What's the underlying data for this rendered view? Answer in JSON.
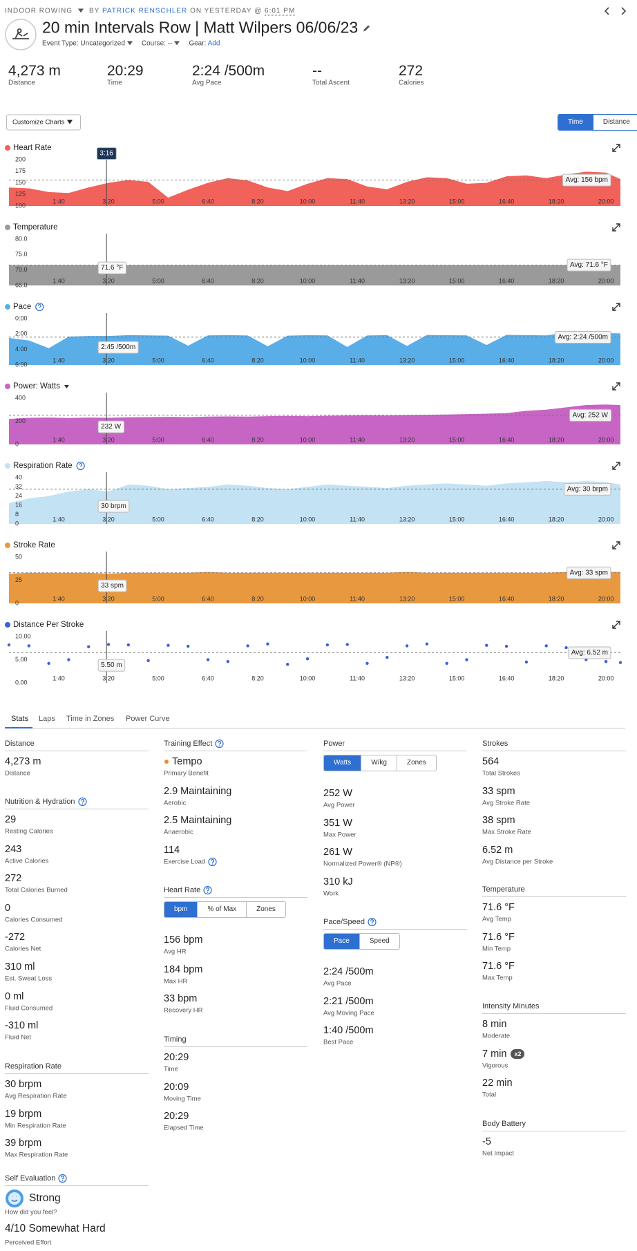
{
  "header": {
    "activity_type": "INDOOR ROWING",
    "by": "BY",
    "author": "PATRICK RENSCHLER",
    "on": "ON YESTERDAY @",
    "time": "6:01 PM",
    "title": "20 min Intervals Row | Matt Wilpers 06/06/23",
    "event_type": "Event Type: Uncategorized",
    "course": "Course: --",
    "gear": "Gear:",
    "gear_add": "Add"
  },
  "summary": [
    {
      "value": "4,273 m",
      "label": "Distance"
    },
    {
      "value": "20:29",
      "label": "Time"
    },
    {
      "value": "2:24 /500m",
      "label": "Avg Pace"
    },
    {
      "value": "--",
      "label": "Total Ascent"
    },
    {
      "value": "272",
      "label": "Calories"
    }
  ],
  "controls": {
    "customize": "Customize Charts",
    "toggle": [
      "Time",
      "Distance"
    ]
  },
  "charts": {
    "xlim": [
      0,
      1229
    ],
    "xticks": [
      {
        "value": 100,
        "label": "1:40"
      },
      {
        "value": 200,
        "label": "3:20"
      },
      {
        "value": 300,
        "label": "5:00"
      },
      {
        "value": 400,
        "label": "6:40"
      },
      {
        "value": 500,
        "label": "8:20"
      },
      {
        "value": 600,
        "label": "10:00"
      },
      {
        "value": 700,
        "label": "11:40"
      },
      {
        "value": 800,
        "label": "13:20"
      },
      {
        "value": 900,
        "label": "15:00"
      },
      {
        "value": 1000,
        "label": "16:40"
      },
      {
        "value": 1100,
        "label": "18:20"
      },
      {
        "value": 1200,
        "label": "20:00"
      }
    ],
    "x": [
      0,
      40,
      80,
      120,
      160,
      200,
      240,
      280,
      320,
      360,
      400,
      440,
      480,
      520,
      560,
      600,
      640,
      680,
      720,
      760,
      800,
      840,
      880,
      920,
      960,
      1000,
      1040,
      1080,
      1120,
      1160,
      1200,
      1229
    ],
    "cursor": {
      "value": 196,
      "label": "3:16"
    },
    "panels": [
      {
        "title": "Heart Rate",
        "color": "#f0625a",
        "style": "area",
        "ylim": [
          100,
          200
        ],
        "yticks": [
          100,
          125,
          150,
          175,
          200
        ],
        "values": [
          140,
          138,
          130,
          128,
          140,
          150,
          156,
          152,
          118,
          135,
          150,
          160,
          155,
          140,
          132,
          148,
          160,
          158,
          142,
          136,
          152,
          162,
          160,
          148,
          150,
          164,
          166,
          160,
          168,
          174,
          172,
          158
        ],
        "avg": {
          "value": 156,
          "label": "Avg: 156 bpm"
        }
      },
      {
        "title": "Temperature",
        "color": "#9a9a9a",
        "style": "area",
        "ylim": [
          65,
          80
        ],
        "yticks": [
          {
            "value": 65,
            "label": "65.0"
          },
          {
            "value": 70,
            "label": "70.0"
          },
          {
            "value": 75,
            "label": "75.0"
          },
          {
            "value": 80,
            "label": "80.0"
          }
        ],
        "values": [
          71.6,
          71.6,
          71.6,
          71.6,
          71.6,
          71.6,
          71.6,
          71.6,
          71.6,
          71.6,
          71.6,
          71.6,
          71.6,
          71.6,
          71.6,
          71.6,
          71.6,
          71.6,
          71.6,
          71.6,
          71.6,
          71.6,
          71.6,
          71.6,
          71.6,
          71.6,
          71.6,
          71.6,
          71.6,
          71.6,
          71.6,
          71.6
        ],
        "avg": {
          "value": 71.6,
          "label": "Avg: 71.6 °F"
        },
        "cursor_label": "71.6 °F"
      },
      {
        "title": "Pace",
        "color": "#5aaee8",
        "style": "area",
        "help": true,
        "inverted": true,
        "ylim": [
          0,
          360
        ],
        "yticks": [
          {
            "value": 0,
            "label": "0:00"
          },
          {
            "value": 120,
            "label": "2:00"
          },
          {
            "value": 240,
            "label": "4:00"
          },
          {
            "value": 360,
            "label": "6:00"
          }
        ],
        "values": [
          150,
          170,
          230,
          140,
          135,
          135,
          128,
          130,
          132,
          210,
          130,
          128,
          131,
          215,
          132,
          129,
          130,
          220,
          131,
          128,
          212,
          127,
          129,
          130,
          205,
          126,
          128,
          130,
          110,
          108,
          112,
          115
        ],
        "avg": {
          "value": 144,
          "label": "Avg: 2:24 /500m"
        },
        "cursor_label": "2:45 /500m"
      },
      {
        "title": "Power: Watts",
        "color": "#c765c4",
        "style": "area",
        "dropdown": true,
        "ylim": [
          0,
          400
        ],
        "yticks": [
          0,
          200,
          400
        ],
        "values": [
          220,
          230,
          232,
          228,
          232,
          230,
          234,
          236,
          238,
          236,
          240,
          242,
          240,
          244,
          246,
          244,
          248,
          250,
          252,
          250,
          254,
          256,
          258,
          262,
          266,
          270,
          290,
          300,
          320,
          340,
          345,
          340
        ],
        "avg": {
          "value": 252,
          "label": "Avg: 252 W"
        },
        "cursor_label": "232 W"
      },
      {
        "title": "Respiration Rate",
        "color": "#c3e2f4",
        "style": "area",
        "help": true,
        "ylim": [
          0,
          40
        ],
        "yticks": [
          0,
          8,
          16,
          24,
          32,
          40
        ],
        "values": [
          18,
          22,
          24,
          28,
          30,
          28,
          34,
          33,
          30,
          31,
          32,
          34,
          33,
          31,
          30,
          32,
          34,
          33,
          32,
          31,
          33,
          34,
          35,
          34,
          33,
          35,
          36,
          37,
          36,
          37,
          36,
          34
        ],
        "avg": {
          "value": 30,
          "label": "Avg: 30 brpm"
        },
        "cursor_label": "30 brpm"
      },
      {
        "title": "Stroke Rate",
        "color": "#e8993f",
        "style": "area",
        "ylim": [
          0,
          50
        ],
        "yticks": [
          0,
          25,
          50
        ],
        "values": [
          32,
          33,
          33,
          33,
          33,
          32,
          33,
          33,
          33,
          33,
          34,
          33,
          33,
          33,
          33,
          33,
          33,
          33,
          33,
          33,
          34,
          33,
          33,
          33,
          33,
          33,
          33,
          33,
          34,
          34,
          34,
          34
        ],
        "avg": {
          "value": 33,
          "label": "Avg: 33 spm"
        },
        "cursor_label": "33 spm"
      },
      {
        "title": "Distance Per Stroke",
        "color": "#3d5fd9",
        "style": "scatter",
        "ylim": [
          0,
          10
        ],
        "yticks": [
          {
            "value": 0,
            "label": "0.00"
          },
          {
            "value": 5,
            "label": "5.00"
          },
          {
            "value": 10,
            "label": "10.00"
          }
        ],
        "values": [
          8.2,
          8.0,
          4.2,
          5.0,
          7.8,
          8.3,
          8.2,
          4.8,
          8.1,
          7.9,
          5.0,
          4.6,
          8.0,
          8.4,
          4.0,
          5.2,
          8.2,
          8.3,
          4.2,
          5.5,
          8.0,
          8.4,
          4.2,
          5.0,
          8.1,
          7.9,
          4.5,
          8.0,
          7.6,
          5.0,
          4.6,
          4.4
        ],
        "avg": {
          "value": 6.52,
          "label": "Avg: 6.52 m"
        },
        "cursor_label": "5.50 m"
      }
    ]
  },
  "stats": {
    "tabs": [
      "Stats",
      "Laps",
      "Time in Zones",
      "Power Curve"
    ],
    "columns": [
      [
        {
          "heading": "Distance",
          "items": [
            {
              "value": "4,273 m",
              "label": "Distance"
            }
          ]
        },
        {
          "heading": "Nutrition & Hydration",
          "help": true,
          "items": [
            {
              "value": "29",
              "label": "Resting Calories"
            },
            {
              "value": "243",
              "label": "Active Calories"
            },
            {
              "value": "272",
              "label": "Total Calories Burned"
            },
            {
              "value": "0",
              "label": "Calories Consumed"
            },
            {
              "value": "-272",
              "label": "Calories Net"
            },
            {
              "value": "310 ml",
              "label": "Est. Sweat Loss"
            },
            {
              "value": "0 ml",
              "label": "Fluid Consumed"
            },
            {
              "value": "-310 ml",
              "label": "Fluid Net"
            }
          ]
        },
        {
          "heading": "Respiration Rate",
          "items": [
            {
              "value": "30 brpm",
              "label": "Avg Respiration Rate"
            },
            {
              "value": "19 brpm",
              "label": "Min Respiration Rate"
            },
            {
              "value": "39 brpm",
              "label": "Max Respiration Rate"
            }
          ]
        },
        {
          "heading": "Self Evaluation",
          "help": true,
          "items": [
            {
              "value": "Strong",
              "icon": "smiley",
              "label": "How did you feel?"
            },
            {
              "value": "4/10 Somewhat Hard",
              "label": "Perceived Effort"
            }
          ]
        }
      ],
      [
        {
          "heading": "Training Effect",
          "help": true,
          "items": [
            {
              "value": "Tempo",
              "dot": "#f08a2c",
              "label": "Primary Benefit"
            },
            {
              "value": "2.9 Maintaining",
              "label": "Aerobic"
            },
            {
              "value": "2.5 Maintaining",
              "label": "Anaerobic"
            },
            {
              "value": "114",
              "label": "Exercise Load",
              "help": true
            }
          ]
        },
        {
          "heading": "Heart Rate",
          "help": true,
          "buttons": [
            "bpm",
            "% of Max",
            "Zones"
          ],
          "items": [
            {
              "value": "156 bpm",
              "label": "Avg HR"
            },
            {
              "value": "184 bpm",
              "label": "Max HR"
            },
            {
              "value": "33 bpm",
              "label": "Recovery HR"
            }
          ]
        },
        {
          "heading": "Timing",
          "items": [
            {
              "value": "20:29",
              "label": "Time"
            },
            {
              "value": "20:09",
              "label": "Moving Time"
            },
            {
              "value": "20:29",
              "label": "Elapsed Time"
            }
          ]
        }
      ],
      [
        {
          "heading": "Power",
          "buttons": [
            "Watts",
            "W/kg",
            "Zones"
          ],
          "items": [
            {
              "value": "252 W",
              "label": "Avg Power"
            },
            {
              "value": "351 W",
              "label": "Max Power"
            },
            {
              "value": "261 W",
              "label": "Normalized Power® (NP®)"
            },
            {
              "value": "310 kJ",
              "label": "Work"
            }
          ]
        },
        {
          "heading": "Pace/Speed",
          "help": true,
          "buttons": [
            "Pace",
            "Speed"
          ],
          "items": [
            {
              "value": "2:24 /500m",
              "label": "Avg Pace"
            },
            {
              "value": "2:21 /500m",
              "label": "Avg Moving Pace"
            },
            {
              "value": "1:40 /500m",
              "label": "Best Pace"
            }
          ]
        }
      ],
      [
        {
          "heading": "Strokes",
          "items": [
            {
              "value": "564",
              "label": "Total Strokes"
            },
            {
              "value": "33 spm",
              "label": "Avg Stroke Rate"
            },
            {
              "value": "38 spm",
              "label": "Max Stroke Rate"
            },
            {
              "value": "6.52 m",
              "label": "Avg Distance per Stroke"
            }
          ]
        },
        {
          "heading": "Temperature",
          "items": [
            {
              "value": "71.6 °F",
              "label": "Avg Temp"
            },
            {
              "value": "71.6 °F",
              "label": "Min Temp"
            },
            {
              "value": "71.6 °F",
              "label": "Max Temp"
            }
          ]
        },
        {
          "heading": "Intensity Minutes",
          "items": [
            {
              "value": "8 min",
              "label": "Moderate"
            },
            {
              "value": "7 min",
              "badge": "x2",
              "label": "Vigorous"
            },
            {
              "value": "22 min",
              "label": "Total"
            }
          ]
        },
        {
          "heading": "Body Battery",
          "items": [
            {
              "value": "-5",
              "label": "Net Impact"
            }
          ]
        }
      ]
    ]
  }
}
